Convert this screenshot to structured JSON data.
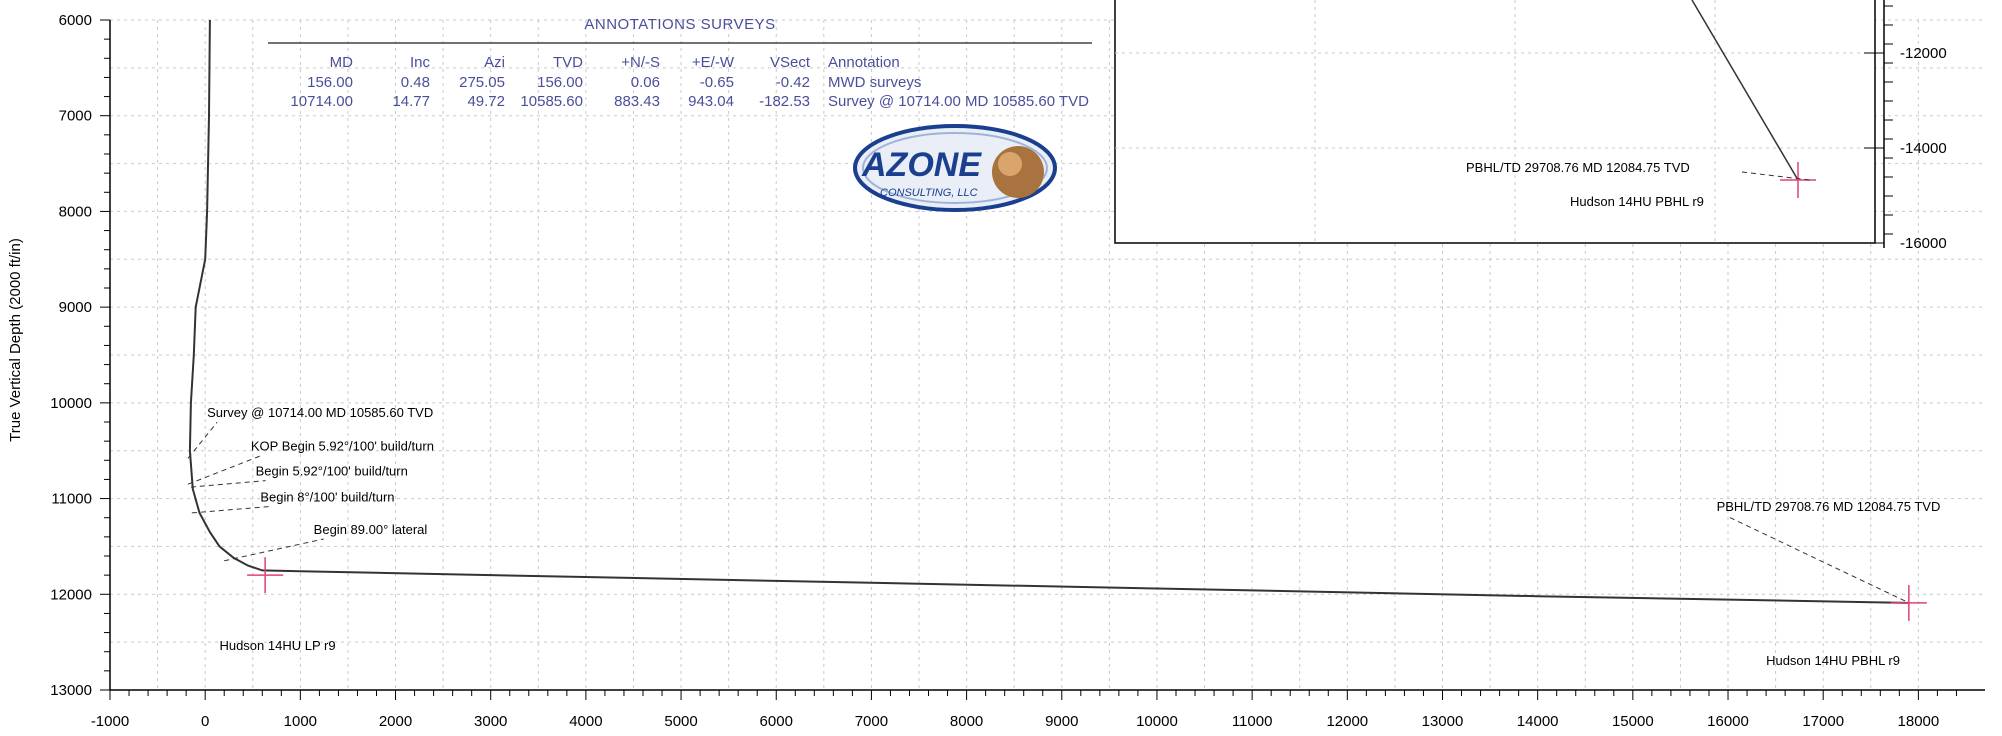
{
  "chart_data": {
    "type": "line",
    "title": "",
    "xlabel": "",
    "ylabel": "True Vertical Depth (2000 ft/in)",
    "xlim": [
      -1000,
      18700
    ],
    "ylim": [
      13000,
      6000
    ],
    "y_inverted": true,
    "grid": true,
    "x_ticks": [
      -1000,
      0,
      1000,
      2000,
      3000,
      4000,
      5000,
      6000,
      7000,
      8000,
      9000,
      10000,
      11000,
      12000,
      13000,
      14000,
      15000,
      16000,
      17000,
      18000
    ],
    "x_tick_labels": [
      "-1000",
      "0",
      "1000",
      "2000",
      "3000",
      "4000",
      "5000",
      "6000",
      "7000",
      "8000",
      "9000",
      "10000",
      "11000",
      "12000",
      "13000",
      "14000",
      "15000",
      "16000",
      "17000",
      "18000"
    ],
    "y_ticks": [
      6000,
      7000,
      8000,
      9000,
      10000,
      11000,
      12000,
      13000
    ],
    "y_tick_labels": [
      "6000",
      "7000",
      "8000",
      "9000",
      "10000",
      "11000",
      "12000",
      "13000"
    ],
    "series": [
      {
        "color": "#333333",
        "x": [
          50,
          40,
          20,
          0,
          -100,
          -120,
          -150,
          -160,
          -130,
          -60,
          50,
          150,
          300,
          450,
          600,
          1000,
          3000,
          6000,
          10000,
          14000,
          17900
        ],
        "y": [
          6000,
          7000,
          8000,
          8500,
          9000,
          9500,
          10000,
          10500,
          10900,
          11150,
          11350,
          11500,
          11620,
          11700,
          11750,
          11760,
          11800,
          11860,
          11940,
          12020,
          12090
        ]
      }
    ],
    "markers": [
      {
        "name": "lp-target",
        "x": 630,
        "y": 11800,
        "color": "#e0407a"
      },
      {
        "name": "pbhl-target",
        "x": 17900,
        "y": 12090,
        "color": "#e0407a"
      }
    ],
    "annotations": [
      {
        "text": "Survey @ 10714.00 MD 10585.60 TVD",
        "x": 20,
        "y": 10150,
        "leader_to": [
          -180,
          10580
        ]
      },
      {
        "text": "KOP Begin 5.92°/100' build/turn",
        "x": 480,
        "y": 10500,
        "leader_to": [
          -180,
          10850
        ]
      },
      {
        "text": "Begin 5.92°/100' build/turn",
        "x": 530,
        "y": 10760,
        "leader_to": [
          -150,
          10880
        ]
      },
      {
        "text": "Begin 8°/100' build/turn",
        "x": 580,
        "y": 11030,
        "leader_to": [
          -140,
          11150
        ]
      },
      {
        "text": "Begin 89.00° lateral",
        "x": 1140,
        "y": 11370,
        "leader_to": [
          200,
          11650
        ]
      },
      {
        "text": "PBHL/TD 29708.76 MD 12084.75 TVD",
        "x": 15880,
        "y": 11130,
        "leader_to": [
          17860,
          12070
        ]
      },
      {
        "text": "Hudson 14HU LP r9",
        "x": 150,
        "y": 12580
      },
      {
        "text": "Hudson 14HU PBHL r9",
        "x": 16400,
        "y": 12740
      }
    ]
  },
  "inset": {
    "y_ticks": [
      -12000,
      -14000,
      -16000
    ],
    "y_tick_labels": [
      "-12000",
      "-14000",
      "-16000"
    ],
    "labels": [
      "PBHL/TD 29708.76 MD 12084.75 TVD",
      "Hudson 14HU PBHL r9"
    ]
  },
  "survey_table": {
    "title": "ANNOTATIONS  SURVEYS",
    "headers": [
      "MD",
      "Inc",
      "Azi",
      "TVD",
      "+N/-S",
      "+E/-W",
      "VSect",
      "Annotation"
    ],
    "rows": [
      [
        "156.00",
        "0.48",
        "275.05",
        "156.00",
        "0.06",
        "-0.65",
        "-0.42",
        "MWD surveys"
      ],
      [
        "10714.00",
        "14.77",
        "49.72",
        "10585.60",
        "883.43",
        "943.04",
        "-182.53",
        "Survey @ 10714.00 MD 10585.60 TVD"
      ]
    ]
  },
  "logo": {
    "text": "AZONE",
    "sub": "CONSULTING, LLC"
  },
  "colors": {
    "curve": "#333333",
    "target": "#e0407a",
    "table_text": "#4a4f9a",
    "grid": "#c9c9c9"
  }
}
